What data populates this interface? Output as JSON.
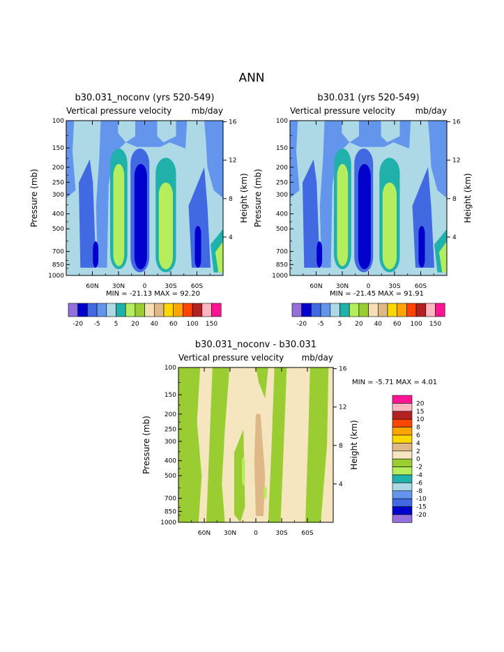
{
  "figure_title": "ANN",
  "colors": {
    "levels_abs": [
      "#9370db",
      "#0000cd",
      "#4169e1",
      "#6495ed",
      "#add8e6",
      "#20b2aa",
      "#b4ee5e",
      "#9acd32",
      "#f5deb3",
      "#deb887",
      "#ffd700",
      "#ffa500",
      "#ff4500",
      "#b22222",
      "#ffb6c1",
      "#ff1493"
    ],
    "levels_diff": [
      "#9370db",
      "#0000cd",
      "#4169e1",
      "#6495ed",
      "#add8e6",
      "#20b2aa",
      "#b4ee5e",
      "#9acd32",
      "#f5e6c0",
      "#deb887",
      "#ffd700",
      "#ffa500",
      "#ff4500",
      "#b22222",
      "#ffb6c1",
      "#ff1493"
    ]
  },
  "chart_data": [
    {
      "type": "heatmap",
      "title": "b30.031_noconv (yrs 520-549)",
      "subtitle_left": "Vertical pressure velocity",
      "subtitle_right": "mb/day",
      "ylabel": "Pressure (mb)",
      "ylabel_right": "Height (km)",
      "y_ticks": [
        100,
        150,
        200,
        250,
        300,
        400,
        500,
        700,
        850,
        1000
      ],
      "y_right_ticks": [
        16,
        12,
        8,
        4
      ],
      "x_ticks": [
        "60N",
        "30N",
        "0",
        "30S",
        "60S"
      ],
      "x_tick_values": [
        60,
        30,
        0,
        -30,
        -60
      ],
      "xlim": [
        90,
        -90
      ],
      "ylim": [
        1000,
        100
      ],
      "stats": "MIN = -21.13   MAX =  92.20",
      "colorbar_labels": [
        "-20",
        "-5",
        "5",
        "20",
        "40",
        "60",
        "100",
        "150"
      ],
      "colorbar_orientation": "horizontal"
    },
    {
      "type": "heatmap",
      "title": "b30.031 (yrs 520-549)",
      "subtitle_left": "Vertical pressure velocity",
      "subtitle_right": "mb/day",
      "ylabel": "Pressure (mb)",
      "ylabel_right": "Height (km)",
      "y_ticks": [
        100,
        150,
        200,
        250,
        300,
        400,
        500,
        700,
        850,
        1000
      ],
      "y_right_ticks": [
        16,
        12,
        8,
        4
      ],
      "x_ticks": [
        "60N",
        "30N",
        "0",
        "30S",
        "60S"
      ],
      "x_tick_values": [
        60,
        30,
        0,
        -30,
        -60
      ],
      "xlim": [
        90,
        -90
      ],
      "ylim": [
        1000,
        100
      ],
      "stats": "MIN = -21.45   MAX =  91.91",
      "colorbar_labels": [
        "-20",
        "-5",
        "5",
        "20",
        "40",
        "60",
        "100",
        "150"
      ],
      "colorbar_orientation": "horizontal"
    },
    {
      "type": "heatmap",
      "title": "b30.031_noconv - b30.031",
      "subtitle_left": "Vertical pressure velocity",
      "subtitle_right": "mb/day",
      "ylabel": "Pressure (mb)",
      "ylabel_right": "Height (km)",
      "y_ticks": [
        100,
        150,
        200,
        250,
        300,
        400,
        500,
        700,
        850,
        1000
      ],
      "y_right_ticks": [
        16,
        12,
        8,
        4
      ],
      "x_ticks": [
        "60N",
        "30N",
        "0",
        "30S",
        "60S"
      ],
      "x_tick_values": [
        60,
        30,
        0,
        -30,
        -60
      ],
      "xlim": [
        90,
        -90
      ],
      "ylim": [
        1000,
        100
      ],
      "stats": "MIN =   -5.71   MAX =   4.01",
      "colorbar_labels": [
        "20",
        "15",
        "10",
        "8",
        "6",
        "4",
        "2",
        "0",
        "-2",
        "-4",
        "-6",
        "-8",
        "-10",
        "-15",
        "-20"
      ],
      "colorbar_orientation": "vertical"
    }
  ]
}
